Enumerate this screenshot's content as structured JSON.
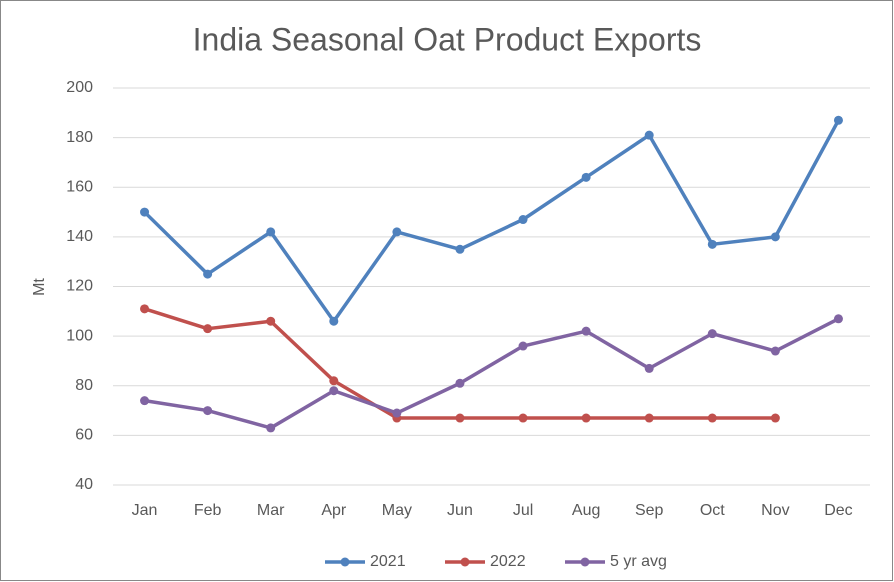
{
  "chart_data": {
    "type": "line",
    "title": "India Seasonal Oat Product Exports",
    "y_label": "Mt",
    "categories": [
      "Jan",
      "Feb",
      "Mar",
      "Apr",
      "May",
      "Jun",
      "Jul",
      "Aug",
      "Sep",
      "Oct",
      "Nov",
      "Dec"
    ],
    "series": [
      {
        "name": "2021",
        "color": "#4f81bd",
        "values": [
          150,
          125,
          142,
          106,
          142,
          135,
          147,
          164,
          181,
          137,
          140,
          187
        ]
      },
      {
        "name": "2022",
        "color": "#c0504d",
        "values": [
          111,
          103,
          106,
          82,
          67,
          67,
          67,
          67,
          67,
          67,
          67,
          null
        ]
      },
      {
        "name": "5 yr avg",
        "color": "#8064a2",
        "values": [
          74,
          70,
          63,
          78,
          69,
          81,
          96,
          102,
          87,
          101,
          94,
          107
        ]
      }
    ],
    "ylim": [
      40,
      200
    ],
    "yticks": [
      40,
      60,
      80,
      100,
      120,
      140,
      160,
      180,
      200
    ],
    "grid": true,
    "legend": "bottom"
  }
}
